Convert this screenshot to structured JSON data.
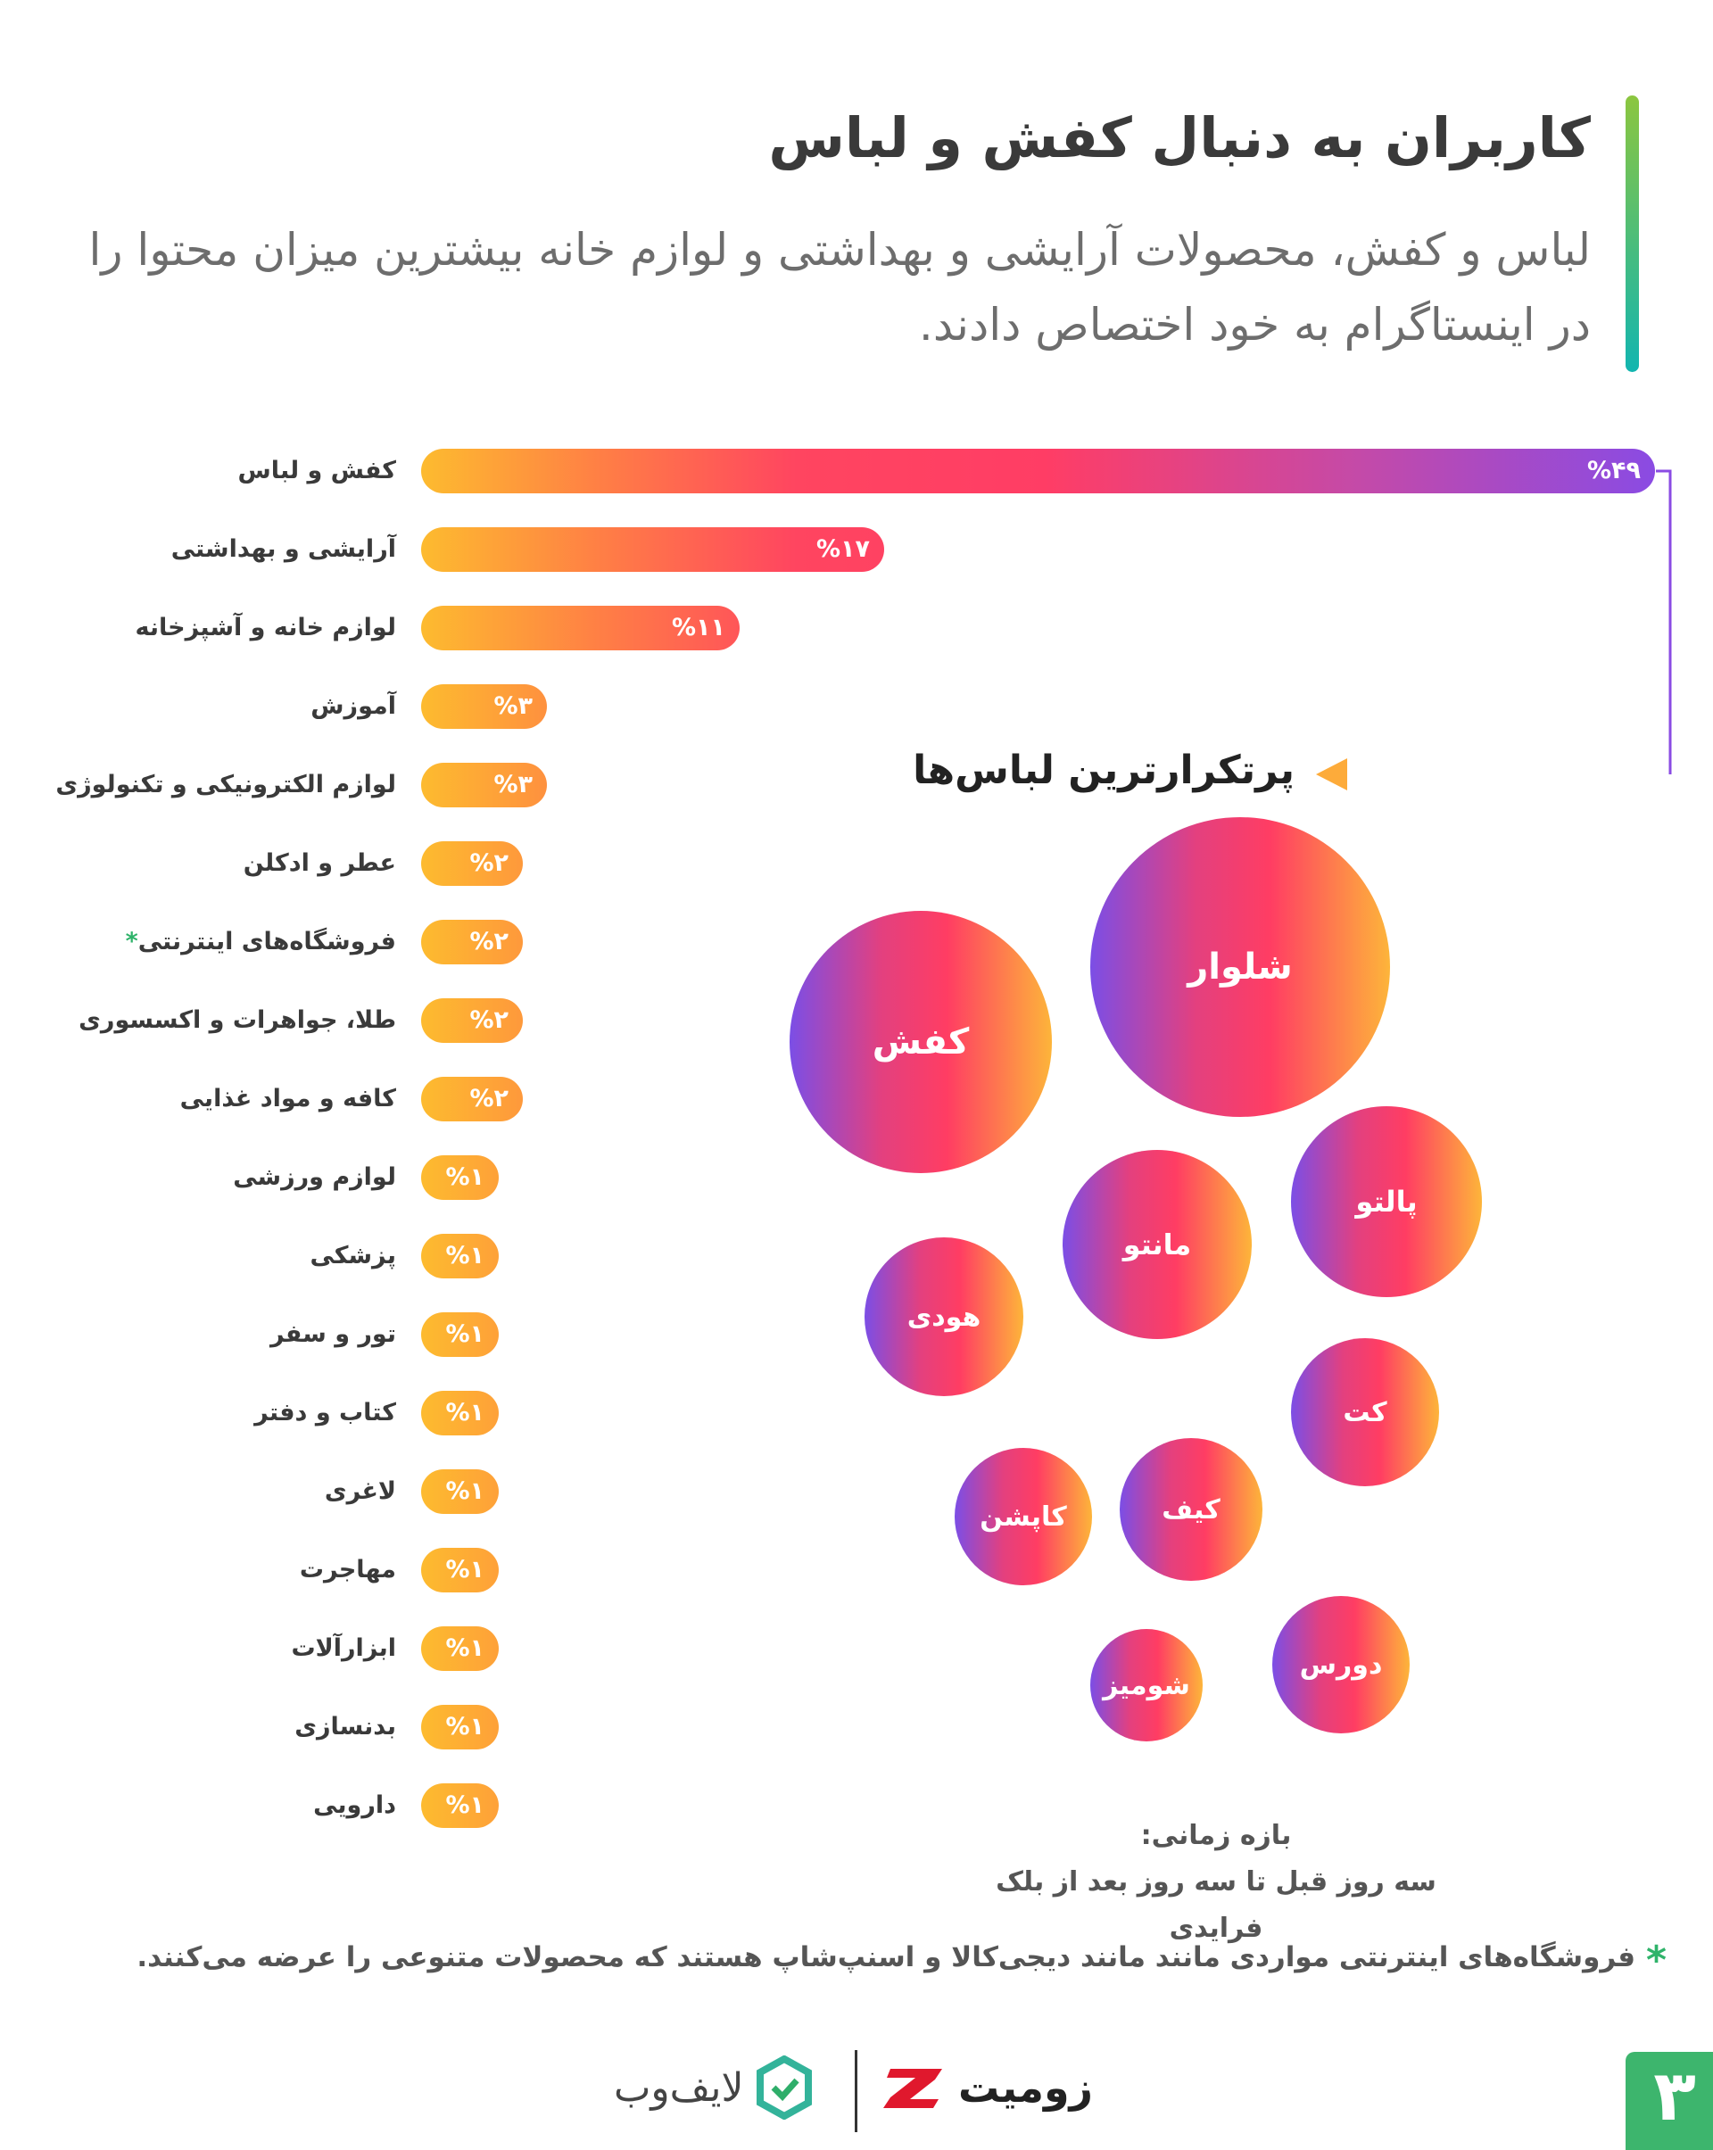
{
  "header": {
    "title": "کاربران به دنبال کفش و لباس",
    "subtitle": "لباس و کفش، محصولات آرایشی و بهداشتی و لوازم خانه بیشترین میزان محتوا را در اینستاگرام به خود اختصاص دادند."
  },
  "chart_data": [
    {
      "type": "bar",
      "orientation": "horizontal",
      "categories": [
        "کفش و لباس",
        "آرایشی و بهداشتی",
        "لوازم خانه و آشپزخانه",
        "آموزش",
        "لوازم الکترونیکی و تکنولوژی",
        "عطر و ادکلن",
        "فروشگاه‌های اینترنتی",
        "طلا، جواهرات و اکسسوری",
        "کافه و مواد غذایی",
        "لوازم ورزشی",
        "پزشکی",
        "تور و سفر",
        "کتاب و دفتر",
        "لاغری",
        "مهاجرت",
        "ابزارآلات",
        "بدنسازی",
        "دارویی"
      ],
      "values": [
        49,
        17,
        11,
        3,
        3,
        2,
        2,
        2,
        2,
        1,
        1,
        1,
        1,
        1,
        1,
        1,
        1,
        1
      ],
      "value_labels": [
        "%۴۹",
        "%۱۷",
        "%۱۱",
        "%۳",
        "%۳",
        "%۲",
        "%۲",
        "%۲",
        "%۲",
        "%۱",
        "%۱",
        "%۱",
        "%۱",
        "%۱",
        "%۱",
        "%۱",
        "%۱",
        "%۱"
      ],
      "starred": [
        "فروشگاه‌های اینترنتی"
      ],
      "unit": "%",
      "colors": {
        "start": "#fdbb2f",
        "mid": "#ff4560",
        "end": "#8a4be3"
      }
    },
    {
      "type": "bubble",
      "title": "پرتکرارترین لباس‌ها",
      "items": [
        "شلوار",
        "کفش",
        "پالتو",
        "مانتو",
        "هودی",
        "کت",
        "کیف",
        "کاپشن",
        "دورس",
        "شومیز"
      ],
      "rank_order": "largest first"
    }
  ],
  "period": {
    "label": "بازه زمانی:",
    "value": "سه روز قبل تا سه روز بعد از بلک فرایدی"
  },
  "footnote": {
    "marker": "*",
    "text": "فروشگاه‌های اینترنتی مواردی مانند مانند دیجی‌کالا و اسنپ‌شاپ هستند که محصولات متنوعی را عرضه می‌کنند."
  },
  "footer": {
    "logo1": "زومیت",
    "logo2": "لایف‌وب",
    "page_number": "۳"
  },
  "colors": {
    "accent_green": "#3db56d",
    "zoomit_red": "#e0182d"
  }
}
